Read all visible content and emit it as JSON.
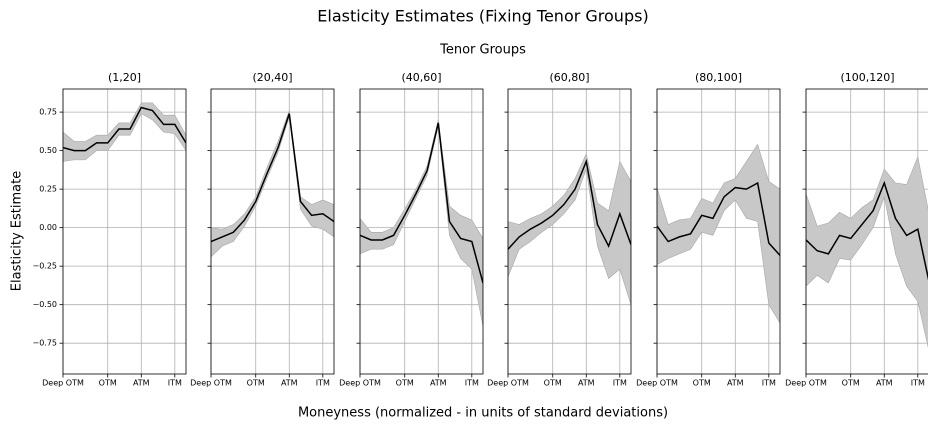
{
  "title": "Elasticity Estimates (Fixing Tenor Groups)",
  "subtitle": "Tenor Groups",
  "x_label": "Moneyness (normalized - in units of standard deviations)",
  "y_label": "Elasticity Estimate",
  "chart_data": [
    {
      "type": "line",
      "title": "(1,20]",
      "color": "#000000",
      "band_color": "#c8c8c8",
      "grid": true,
      "ylim": [
        -0.95,
        0.9
      ],
      "yticks": [
        {
          "value": -0.75,
          "label": "−0.75"
        },
        {
          "value": -0.5,
          "label": "−0.50"
        },
        {
          "value": -0.25,
          "label": "−0.25"
        },
        {
          "value": 0,
          "label": "0.00"
        },
        0.25,
        {
          "value": 0.5,
          "label": "0.50"
        },
        0.75
      ],
      "x": [
        0,
        1,
        2,
        3,
        4,
        5,
        6,
        7,
        8,
        9,
        10,
        11
      ],
      "xlim": [
        0,
        11
      ],
      "xticks": [
        {
          "value": 0,
          "label": "Deep OTM"
        },
        {
          "value": 4,
          "label": "OTM"
        },
        {
          "value": 7,
          "label": "ATM"
        },
        {
          "value": 10,
          "label": "ITM"
        }
      ],
      "values": [
        0.52,
        0.5,
        0.5,
        0.55,
        0.55,
        0.64,
        0.64,
        0.78,
        0.76,
        0.67,
        0.67,
        0.55
      ],
      "upper": [
        0.62,
        0.56,
        0.56,
        0.6,
        0.6,
        0.68,
        0.68,
        0.81,
        0.81,
        0.73,
        0.73,
        0.6
      ],
      "lower": [
        0.43,
        0.44,
        0.44,
        0.5,
        0.5,
        0.6,
        0.6,
        0.74,
        0.7,
        0.62,
        0.61,
        0.5
      ]
    },
    {
      "type": "line",
      "title": "(20,40]",
      "color": "#000000",
      "band_color": "#c8c8c8",
      "grid": true,
      "x": [
        0,
        1,
        2,
        3,
        4,
        5,
        6,
        7,
        8,
        9,
        10,
        11
      ],
      "xlim": [
        0,
        11
      ],
      "xticks": [
        {
          "value": 0,
          "label": "Deep OTM"
        },
        {
          "value": 4,
          "label": "OTM"
        },
        {
          "value": 7,
          "label": "ATM"
        },
        {
          "value": 10,
          "label": "ITM"
        }
      ],
      "values": [
        -0.09,
        -0.06,
        -0.03,
        0.05,
        0.17,
        0.35,
        0.52,
        0.74,
        0.17,
        0.08,
        0.09,
        0.04
      ],
      "upper": [
        0.0,
        -0.01,
        0.02,
        0.09,
        0.2,
        0.39,
        0.56,
        0.76,
        0.2,
        0.15,
        0.18,
        0.15
      ],
      "lower": [
        -0.19,
        -0.12,
        -0.09,
        0.01,
        0.14,
        0.32,
        0.49,
        0.72,
        0.12,
        0.01,
        -0.01,
        -0.06
      ]
    },
    {
      "type": "line",
      "title": "(40,60]",
      "color": "#000000",
      "band_color": "#c8c8c8",
      "grid": true,
      "x": [
        0,
        1,
        2,
        3,
        4,
        5,
        6,
        7,
        8,
        9,
        10,
        11
      ],
      "xlim": [
        0,
        11
      ],
      "xticks": [
        {
          "value": 0,
          "label": "Deep OTM"
        },
        {
          "value": 4,
          "label": "OTM"
        },
        {
          "value": 7,
          "label": "ATM"
        },
        {
          "value": 10,
          "label": "ITM"
        }
      ],
      "values": [
        -0.05,
        -0.08,
        -0.08,
        -0.05,
        0.08,
        0.22,
        0.37,
        0.68,
        0.04,
        -0.07,
        -0.09,
        -0.36
      ],
      "upper": [
        0.06,
        -0.03,
        -0.03,
        0.0,
        0.12,
        0.25,
        0.4,
        0.7,
        0.14,
        0.08,
        0.05,
        -0.07
      ],
      "lower": [
        -0.17,
        -0.14,
        -0.14,
        -0.11,
        0.04,
        0.19,
        0.34,
        0.66,
        -0.05,
        -0.2,
        -0.27,
        -0.64
      ]
    },
    {
      "type": "line",
      "title": "(60,80]",
      "color": "#000000",
      "band_color": "#c8c8c8",
      "grid": true,
      "x": [
        0,
        1,
        2,
        3,
        4,
        5,
        6,
        7,
        8,
        9,
        10,
        11
      ],
      "xlim": [
        0,
        11
      ],
      "xticks": [
        {
          "value": 0,
          "label": "Deep OTM"
        },
        {
          "value": 4,
          "label": "OTM"
        },
        {
          "value": 7,
          "label": "ATM"
        },
        {
          "value": 10,
          "label": "ITM"
        }
      ],
      "values": [
        -0.14,
        -0.06,
        -0.01,
        0.03,
        0.08,
        0.15,
        0.25,
        0.43,
        0.02,
        -0.12,
        0.09,
        -0.11
      ],
      "upper": [
        0.04,
        0.02,
        0.06,
        0.09,
        0.14,
        0.21,
        0.32,
        0.48,
        0.16,
        0.11,
        0.43,
        0.3
      ],
      "lower": [
        -0.32,
        -0.14,
        -0.09,
        -0.03,
        0.02,
        0.09,
        0.18,
        0.38,
        -0.12,
        -0.33,
        -0.27,
        -0.5
      ]
    },
    {
      "type": "line",
      "title": "(80,100]",
      "color": "#000000",
      "band_color": "#c8c8c8",
      "grid": true,
      "x": [
        0,
        1,
        2,
        3,
        4,
        5,
        6,
        7,
        8,
        9,
        10,
        11
      ],
      "xlim": [
        0,
        11
      ],
      "xticks": [
        {
          "value": 0,
          "label": "Deep OTM"
        },
        {
          "value": 4,
          "label": "OTM"
        },
        {
          "value": 7,
          "label": "ATM"
        },
        {
          "value": 10,
          "label": "ITM"
        }
      ],
      "values": [
        0.01,
        -0.09,
        -0.06,
        -0.04,
        0.08,
        0.06,
        0.2,
        0.26,
        0.25,
        0.29,
        -0.1,
        -0.18
      ],
      "upper": [
        0.26,
        0.02,
        0.05,
        0.06,
        0.19,
        0.16,
        0.29,
        0.32,
        0.43,
        0.54,
        0.3,
        0.25
      ],
      "lower": [
        -0.24,
        -0.2,
        -0.17,
        -0.14,
        -0.03,
        -0.05,
        0.11,
        0.18,
        0.06,
        0.04,
        -0.5,
        -0.62
      ]
    },
    {
      "type": "line",
      "title": "(100,120]",
      "color": "#000000",
      "band_color": "#c8c8c8",
      "grid": true,
      "x": [
        0,
        1,
        2,
        3,
        4,
        5,
        6,
        7,
        8,
        9,
        10,
        11
      ],
      "xlim": [
        0,
        11
      ],
      "xticks": [
        {
          "value": 0,
          "label": "Deep OTM"
        },
        {
          "value": 4,
          "label": "OTM"
        },
        {
          "value": 7,
          "label": "ATM"
        },
        {
          "value": 10,
          "label": "ITM"
        }
      ],
      "values": [
        -0.08,
        -0.15,
        -0.17,
        -0.05,
        -0.07,
        0.02,
        0.11,
        0.29,
        0.06,
        -0.05,
        -0.01,
        -0.35
      ],
      "upper": [
        0.22,
        0.01,
        0.03,
        0.1,
        0.06,
        0.13,
        0.18,
        0.38,
        0.29,
        0.28,
        0.46,
        0.09
      ],
      "lower": [
        -0.38,
        -0.31,
        -0.36,
        -0.2,
        -0.21,
        -0.11,
        0.0,
        0.2,
        -0.17,
        -0.38,
        -0.48,
        -0.8
      ]
    }
  ]
}
